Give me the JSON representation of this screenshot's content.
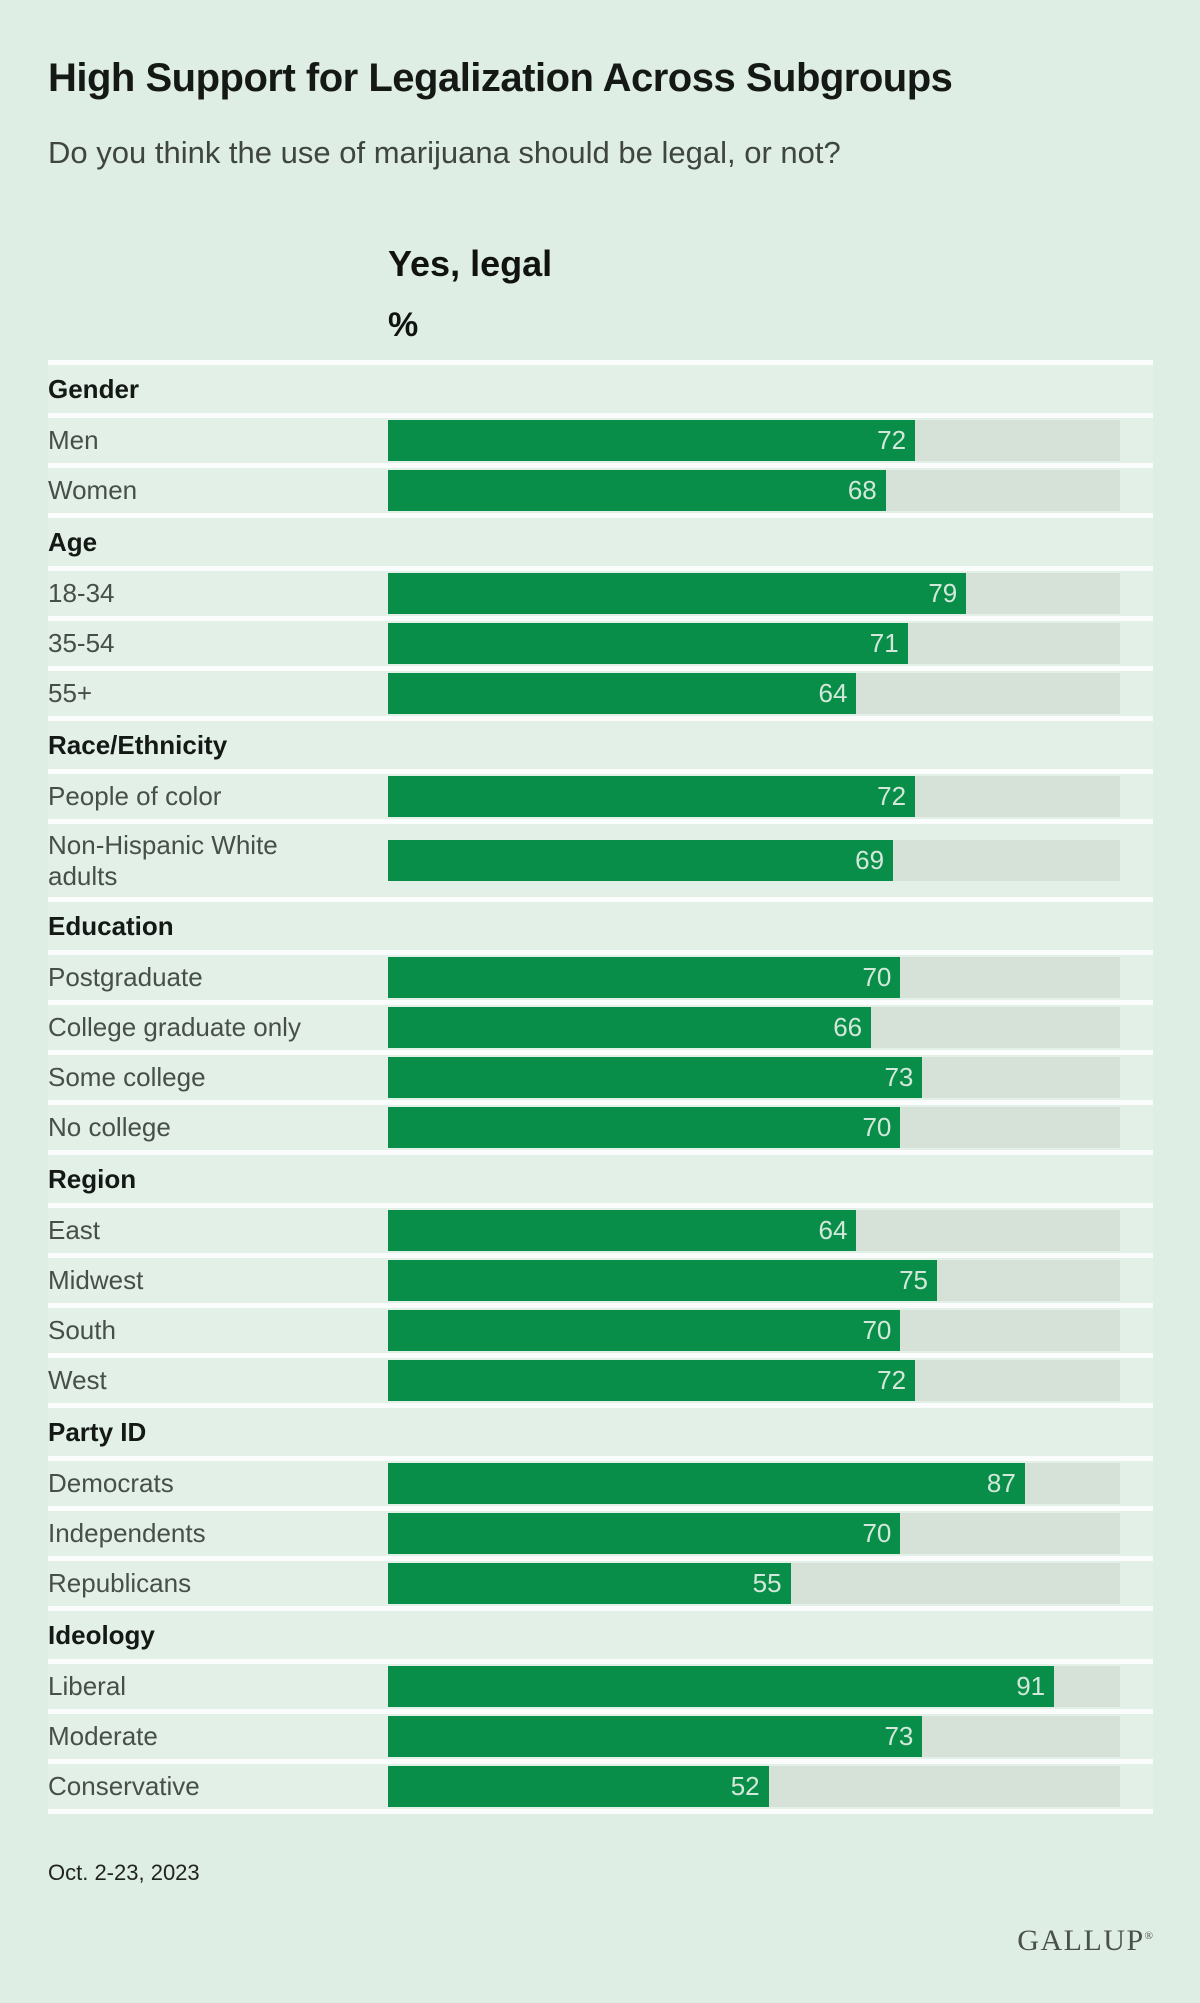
{
  "page": {
    "title": "High Support for Legalization Across Subgroups",
    "subtitle": "Do you think the use of marijuana should be legal, or not?",
    "column_header": "Yes, legal",
    "unit_label": "%",
    "date_note": "Oct. 2-23, 2023",
    "brand": "GALLUP",
    "brand_mark": "®"
  },
  "colors": {
    "page_background": "#dfeee4",
    "row_background": "#e3f0e8",
    "separator": "#fafdfb",
    "bar_track": "#d6e1d8",
    "bar_fill": "#088e48",
    "bar_value_text": "#d3e8da",
    "title_text": "#151916",
    "label_text": "#474f49"
  },
  "chart_data": {
    "type": "bar",
    "orientation": "horizontal",
    "title": "High Support for Legalization Across Subgroups",
    "subtitle": "Do you think the use of marijuana should be legal, or not?",
    "series_label": "Yes, legal",
    "unit": "%",
    "xlim": [
      0,
      100
    ],
    "grid": false,
    "legend": false,
    "value_labels": "inside-end",
    "groups": [
      {
        "name": "Gender",
        "rows": [
          {
            "label": "Men",
            "value": 72
          },
          {
            "label": "Women",
            "value": 68
          }
        ]
      },
      {
        "name": "Age",
        "rows": [
          {
            "label": "18-34",
            "value": 79
          },
          {
            "label": "35-54",
            "value": 71
          },
          {
            "label": "55+",
            "value": 64
          }
        ]
      },
      {
        "name": "Race/Ethnicity",
        "rows": [
          {
            "label": "People of color",
            "value": 72
          },
          {
            "label": "Non-Hispanic White adults",
            "value": 69,
            "tall": true
          }
        ]
      },
      {
        "name": "Education",
        "rows": [
          {
            "label": "Postgraduate",
            "value": 70
          },
          {
            "label": "College graduate only",
            "value": 66
          },
          {
            "label": "Some college",
            "value": 73
          },
          {
            "label": "No college",
            "value": 70
          }
        ]
      },
      {
        "name": "Region",
        "rows": [
          {
            "label": "East",
            "value": 64
          },
          {
            "label": "Midwest",
            "value": 75
          },
          {
            "label": "South",
            "value": 70
          },
          {
            "label": "West",
            "value": 72
          }
        ]
      },
      {
        "name": "Party ID",
        "rows": [
          {
            "label": "Democrats",
            "value": 87
          },
          {
            "label": "Independents",
            "value": 70
          },
          {
            "label": "Republicans",
            "value": 55
          }
        ]
      },
      {
        "name": "Ideology",
        "rows": [
          {
            "label": "Liberal",
            "value": 91
          },
          {
            "label": "Moderate",
            "value": 73
          },
          {
            "label": "Conservative",
            "value": 52
          }
        ]
      }
    ]
  }
}
